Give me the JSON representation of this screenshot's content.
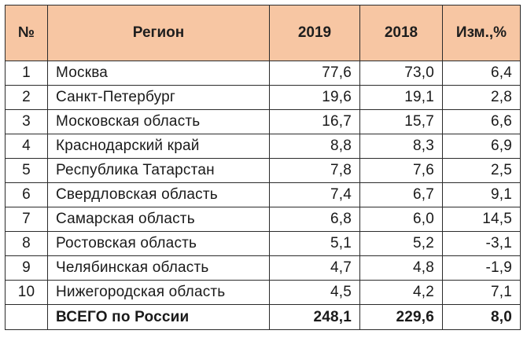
{
  "table": {
    "headers": {
      "num": "№",
      "region": "Регион",
      "y2019": "2019",
      "y2018": "2018",
      "change": "Изм.,%"
    },
    "rows": [
      {
        "num": "1",
        "region": "Москва",
        "y2019": "77,6",
        "y2018": "73,0",
        "change": "6,4"
      },
      {
        "num": "2",
        "region": "Санкт-Петербург",
        "y2019": "19,6",
        "y2018": "19,1",
        "change": "2,8"
      },
      {
        "num": "3",
        "region": "Московская область",
        "y2019": "16,7",
        "y2018": "15,7",
        "change": "6,6"
      },
      {
        "num": "4",
        "region": "Краснодарский край",
        "y2019": "8,8",
        "y2018": "8,3",
        "change": "6,9"
      },
      {
        "num": "5",
        "region": "Республика Татарстан",
        "y2019": "7,8",
        "y2018": "7,6",
        "change": "2,5"
      },
      {
        "num": "6",
        "region": "Свердловская область",
        "y2019": "7,4",
        "y2018": "6,7",
        "change": "9,1"
      },
      {
        "num": "7",
        "region": "Самарская область",
        "y2019": "6,8",
        "y2018": "6,0",
        "change": "14,5"
      },
      {
        "num": "8",
        "region": "Ростовская область",
        "y2019": "5,1",
        "y2018": "5,2",
        "change": "-3,1"
      },
      {
        "num": "9",
        "region": "Челябинская область",
        "y2019": "4,7",
        "y2018": "4,8",
        "change": "-1,9"
      },
      {
        "num": "10",
        "region": "Нижегородская область",
        "y2019": "4,5",
        "y2018": "4,2",
        "change": "7,1"
      }
    ],
    "total": {
      "label": "ВСЕГО по России",
      "y2019": "248,1",
      "y2018": "229,6",
      "change": "8,0"
    }
  },
  "colors": {
    "header_bg": "#f7c6a3",
    "border": "#2b2b2b"
  }
}
